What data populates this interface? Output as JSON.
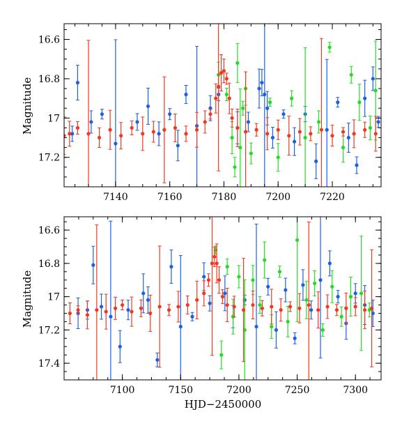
{
  "chart_data": [
    {
      "type": "scatter",
      "title": "",
      "xlabel": "",
      "ylabel": "Magnitude",
      "xlim": [
        7121,
        7238
      ],
      "ylim": [
        17.35,
        16.52
      ],
      "y_inverted": true,
      "xticks": [
        7140,
        7160,
        7180,
        7200,
        7220
      ],
      "xtick_labels": [
        "7140",
        "7160",
        "7180",
        "7200",
        "7220"
      ],
      "yticks": [
        16.6,
        16.8,
        17,
        17.2
      ],
      "ytick_labels": [
        "16.6",
        "16.8",
        "17",
        "17.2"
      ],
      "series": [
        {
          "name": "blue",
          "color": "#1f5fe0",
          "points": [
            [
              7124,
              17.08
            ],
            [
              7126,
              16.82
            ],
            [
              7131,
              17.02
            ],
            [
              7135,
              16.98
            ],
            [
              7140,
              17.13
            ],
            [
              7148,
              17.02
            ],
            [
              7152,
              16.94
            ],
            [
              7156,
              17.08
            ],
            [
              7160,
              16.98
            ],
            [
              7163,
              17.14
            ],
            [
              7166,
              16.88
            ],
            [
              7170,
              17.04
            ],
            [
              7175,
              16.95
            ],
            [
              7178,
              16.88
            ],
            [
              7185,
              17.05
            ],
            [
              7189,
              17.02
            ],
            [
              7193,
              16.85
            ],
            [
              7194,
              16.82
            ],
            [
              7195,
              16.88
            ],
            [
              7196,
              16.95
            ],
            [
              7198,
              17.1
            ],
            [
              7202,
              16.98
            ],
            [
              7206,
              17.12
            ],
            [
              7210,
              16.98
            ],
            [
              7214,
              17.22
            ],
            [
              7218,
              17.06
            ],
            [
              7222,
              16.92
            ],
            [
              7226,
              17.1
            ],
            [
              7229,
              17.24
            ],
            [
              7232,
              16.9
            ],
            [
              7235,
              16.8
            ],
            [
              7237,
              17.02
            ]
          ]
        },
        {
          "name": "green",
          "color": "#22dd22",
          "points": [
            [
              7178,
              16.78
            ],
            [
              7181,
              16.88
            ],
            [
              7183,
              17.1
            ],
            [
              7184,
              17.25
            ],
            [
              7185,
              16.72
            ],
            [
              7186,
              17.15
            ],
            [
              7187,
              16.95
            ],
            [
              7188,
              16.85
            ],
            [
              7190,
              17.18
            ],
            [
              7197,
              16.92
            ],
            [
              7200,
              17.2
            ],
            [
              7205,
              16.9
            ],
            [
              7210,
              17.1
            ],
            [
              7215,
              17.02
            ],
            [
              7219,
              16.64
            ],
            [
              7224,
              17.15
            ],
            [
              7227,
              16.78
            ],
            [
              7230,
              16.92
            ],
            [
              7234,
              17.05
            ],
            [
              7236,
              16.86
            ]
          ]
        },
        {
          "name": "red",
          "color": "#f03820",
          "points": [
            [
              7121,
              17.09
            ],
            [
              7123,
              17.08
            ],
            [
              7126,
              17.05
            ],
            [
              7130,
              17.08
            ],
            [
              7134,
              17.1
            ],
            [
              7138,
              17.06
            ],
            [
              7142,
              17.09
            ],
            [
              7146,
              17.05
            ],
            [
              7150,
              17.08
            ],
            [
              7154,
              17.07
            ],
            [
              7158,
              17.06
            ],
            [
              7162,
              17.05
            ],
            [
              7166,
              17.08
            ],
            [
              7170,
              17.06
            ],
            [
              7173,
              17.02
            ],
            [
              7175,
              16.98
            ],
            [
              7177,
              16.9
            ],
            [
              7178,
              16.84
            ],
            [
              7179,
              16.77
            ],
            [
              7180,
              16.76
            ],
            [
              7181,
              16.8
            ],
            [
              7182,
              16.9
            ],
            [
              7183,
              17.0
            ],
            [
              7185,
              17.05
            ],
            [
              7188,
              17.07
            ],
            [
              7192,
              17.06
            ],
            [
              7196,
              17.08
            ],
            [
              7200,
              17.06
            ],
            [
              7204,
              17.09
            ],
            [
              7208,
              17.07
            ],
            [
              7212,
              17.08
            ],
            [
              7216,
              17.06
            ],
            [
              7220,
              17.09
            ],
            [
              7224,
              17.07
            ],
            [
              7228,
              17.08
            ],
            [
              7232,
              17.06
            ],
            [
              7236,
              17.08
            ]
          ]
        }
      ]
    },
    {
      "type": "scatter",
      "title": "",
      "xlabel": "HJD−2450000",
      "ylabel": "Magnitude",
      "xlim": [
        7050,
        7322
      ],
      "ylim": [
        17.5,
        16.52
      ],
      "y_inverted": true,
      "xticks": [
        7100,
        7150,
        7200,
        7250,
        7300
      ],
      "xtick_labels": [
        "7100",
        "7150",
        "7200",
        "7250",
        "7300"
      ],
      "yticks": [
        16.6,
        16.8,
        17,
        17.2,
        17.4
      ],
      "ytick_labels": [
        "16.6",
        "16.8",
        "17",
        "17.2",
        "17.4"
      ],
      "series": [
        {
          "name": "blue",
          "color": "#1f5fe0",
          "points": [
            [
              7062,
              17.1
            ],
            [
              7070,
              17.08
            ],
            [
              7075,
              16.81
            ],
            [
              7082,
              17.06
            ],
            [
              7090,
              17.12
            ],
            [
              7098,
              17.3
            ],
            [
              7105,
              17.08
            ],
            [
              7118,
              16.98
            ],
            [
              7122,
              17.02
            ],
            [
              7130,
              17.38
            ],
            [
              7142,
              16.82
            ],
            [
              7150,
              17.18
            ],
            [
              7160,
              17.12
            ],
            [
              7170,
              16.88
            ],
            [
              7175,
              17.04
            ],
            [
              7188,
              16.98
            ],
            [
              7195,
              17.12
            ],
            [
              7205,
              17.02
            ],
            [
              7215,
              17.18
            ],
            [
              7225,
              16.94
            ],
            [
              7232,
              17.2
            ],
            [
              7240,
              16.96
            ],
            [
              7248,
              17.25
            ],
            [
              7255,
              16.93
            ],
            [
              7262,
              17.08
            ],
            [
              7270,
              16.9
            ],
            [
              7278,
              16.8
            ],
            [
              7285,
              17.0
            ],
            [
              7292,
              17.16
            ],
            [
              7300,
              16.98
            ],
            [
              7308,
              17.05
            ],
            [
              7315,
              17.1
            ]
          ]
        },
        {
          "name": "green",
          "color": "#22dd22",
          "points": [
            [
              7180,
              16.72
            ],
            [
              7185,
              17.35
            ],
            [
              7190,
              16.82
            ],
            [
              7195,
              17.12
            ],
            [
              7200,
              16.88
            ],
            [
              7205,
              17.2
            ],
            [
              7212,
              16.9
            ],
            [
              7218,
              17.05
            ],
            [
              7222,
              16.78
            ],
            [
              7228,
              17.18
            ],
            [
              7235,
              16.85
            ],
            [
              7242,
              17.15
            ],
            [
              7250,
              16.66
            ],
            [
              7258,
              17.02
            ],
            [
              7265,
              16.92
            ],
            [
              7272,
              17.2
            ],
            [
              7280,
              16.94
            ],
            [
              7288,
              17.12
            ],
            [
              7296,
              17.0
            ],
            [
              7305,
              16.98
            ],
            [
              7312,
              17.08
            ]
          ]
        },
        {
          "name": "red",
          "color": "#f03820",
          "points": [
            [
              7055,
              17.1
            ],
            [
              7062,
              17.08
            ],
            [
              7070,
              17.11
            ],
            [
              7078,
              17.08
            ],
            [
              7086,
              17.09
            ],
            [
              7094,
              17.07
            ],
            [
              7100,
              17.05
            ],
            [
              7108,
              17.09
            ],
            [
              7116,
              17.07
            ],
            [
              7124,
              17.1
            ],
            [
              7132,
              17.06
            ],
            [
              7140,
              17.08
            ],
            [
              7148,
              17.06
            ],
            [
              7156,
              17.05
            ],
            [
              7164,
              17.02
            ],
            [
              7170,
              16.98
            ],
            [
              7174,
              16.9
            ],
            [
              7177,
              16.8
            ],
            [
              7179,
              16.76
            ],
            [
              7181,
              16.8
            ],
            [
              7183,
              16.9
            ],
            [
              7186,
              17.0
            ],
            [
              7190,
              17.05
            ],
            [
              7196,
              17.06
            ],
            [
              7204,
              17.08
            ],
            [
              7212,
              17.05
            ],
            [
              7220,
              17.07
            ],
            [
              7228,
              17.06
            ],
            [
              7236,
              17.08
            ],
            [
              7244,
              17.06
            ],
            [
              7252,
              17.07
            ],
            [
              7260,
              17.05
            ],
            [
              7268,
              17.08
            ],
            [
              7276,
              17.06
            ],
            [
              7284,
              17.08
            ],
            [
              7292,
              17.07
            ],
            [
              7300,
              17.06
            ],
            [
              7308,
              17.08
            ],
            [
              7314,
              17.07
            ]
          ]
        }
      ]
    }
  ]
}
